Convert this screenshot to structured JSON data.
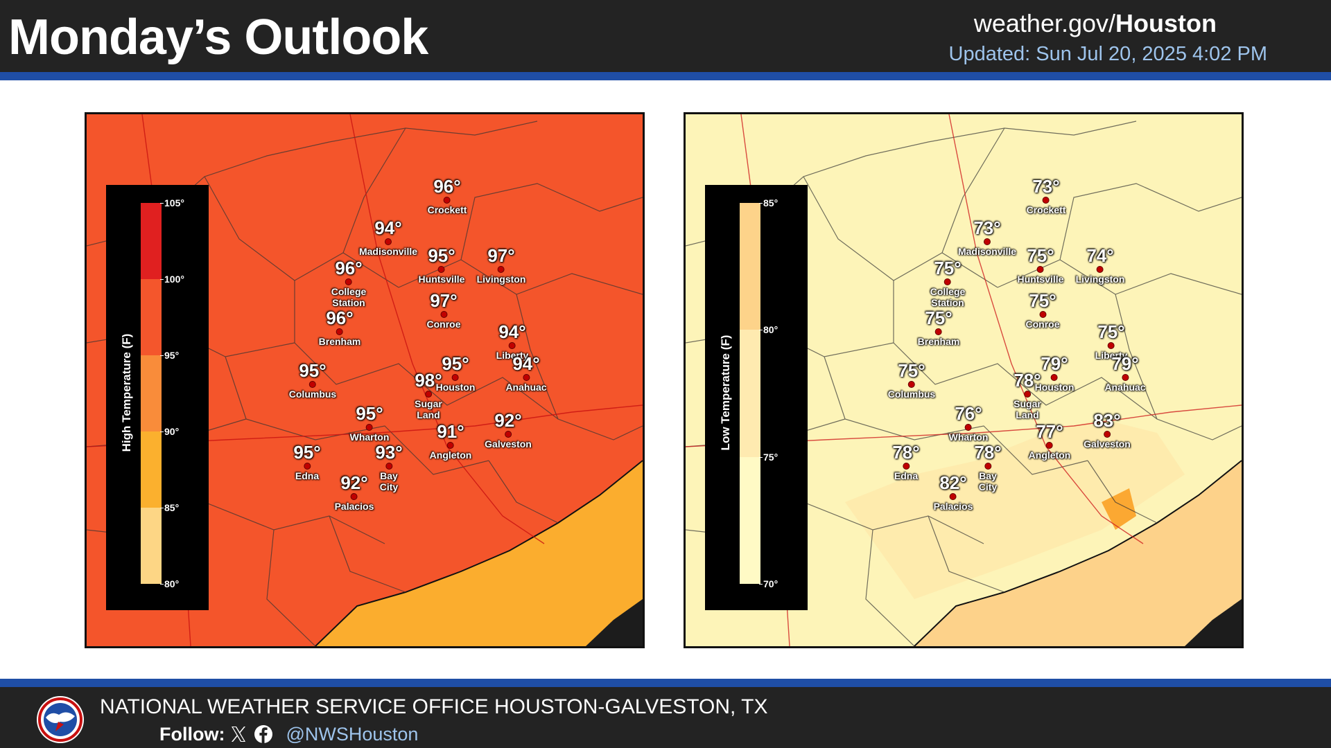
{
  "header": {
    "title": "Monday’s Outlook",
    "site_prefix": "weather.gov/",
    "site_bold": "Houston",
    "updated": "Updated: Sun Jul 20, 2025 4:02 PM"
  },
  "high_map": {
    "legend_title": "High Temperature (F)",
    "legend_ticks": [
      "105°",
      "100°",
      "95°",
      "90°",
      "85°",
      "80°"
    ],
    "legend_colors": [
      "#e02020",
      "#f4562c",
      "#f98c3a",
      "#fbb02e",
      "#fdd685"
    ],
    "fill_color": "#f4552b",
    "gulf_color": "#fbad2e",
    "cities": [
      {
        "name": "Crockett",
        "temp": "96°"
      },
      {
        "name": "Madisonville",
        "temp": "94°"
      },
      {
        "name": "Huntsville",
        "temp": "95°"
      },
      {
        "name": "Livingston",
        "temp": "97°"
      },
      {
        "name": "College Station",
        "temp": "96°"
      },
      {
        "name": "Conroe",
        "temp": "97°"
      },
      {
        "name": "Brenham",
        "temp": "96°"
      },
      {
        "name": "Liberty",
        "temp": "94°"
      },
      {
        "name": "Columbus",
        "temp": "95°"
      },
      {
        "name": "Houston",
        "temp": "95°"
      },
      {
        "name": "Anahuac",
        "temp": "94°"
      },
      {
        "name": "Sugar Land",
        "temp": "98°"
      },
      {
        "name": "Wharton",
        "temp": "95°"
      },
      {
        "name": "Galveston",
        "temp": "92°"
      },
      {
        "name": "Angleton",
        "temp": "91°"
      },
      {
        "name": "Edna",
        "temp": "95°"
      },
      {
        "name": "Bay City",
        "temp": "93°"
      },
      {
        "name": "Palacios",
        "temp": "92°"
      }
    ]
  },
  "low_map": {
    "legend_title": "Low Temperature (F)",
    "legend_ticks": [
      "85°",
      "80°",
      "75°",
      "70°"
    ],
    "legend_colors": [
      "#fdd38a",
      "#feeab0",
      "#fffac5"
    ],
    "fill_color": "#fdf4b8",
    "gulf_color": "#fdd28a",
    "cities": [
      {
        "name": "Crockett",
        "temp": "73°"
      },
      {
        "name": "Madisonville",
        "temp": "73°"
      },
      {
        "name": "Huntsville",
        "temp": "75°"
      },
      {
        "name": "Livingston",
        "temp": "74°"
      },
      {
        "name": "College Station",
        "temp": "75°"
      },
      {
        "name": "Conroe",
        "temp": "75°"
      },
      {
        "name": "Brenham",
        "temp": "75°"
      },
      {
        "name": "Liberty",
        "temp": "75°"
      },
      {
        "name": "Columbus",
        "temp": "75°"
      },
      {
        "name": "Houston",
        "temp": "79°"
      },
      {
        "name": "Anahuac",
        "temp": "79°"
      },
      {
        "name": "Sugar Land",
        "temp": "78°"
      },
      {
        "name": "Wharton",
        "temp": "76°"
      },
      {
        "name": "Galveston",
        "temp": "83°"
      },
      {
        "name": "Angleton",
        "temp": "77°"
      },
      {
        "name": "Edna",
        "temp": "78°"
      },
      {
        "name": "Bay City",
        "temp": "78°"
      },
      {
        "name": "Palacios",
        "temp": "82°"
      }
    ]
  },
  "footer": {
    "office": "NATIONAL WEATHER SERVICE OFFICE HOUSTON-GALVESTON, TX",
    "follow_label": "Follow:",
    "handle": "@NWSHouston",
    "icons": [
      "x-icon",
      "facebook-icon"
    ]
  }
}
